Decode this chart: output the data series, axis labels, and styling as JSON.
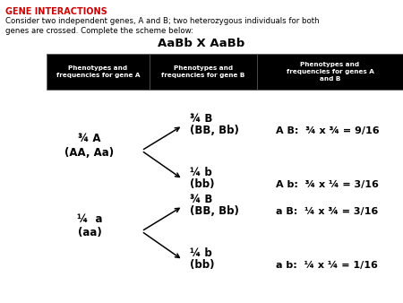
{
  "title_text": "GENE INTERACTIONS",
  "title_color": "#cc0000",
  "body_line1": "Consider two independent genes, A and B; two heterozygous individuals for both",
  "body_line2": "genes are crossed. Complete the scheme below:",
  "cross_text": "AaBb X AaBb",
  "table_headers": [
    "Phenotypes and\nfrequencies for gene A",
    "Phenotypes and\nfrequencies for gene B",
    "Phenotypes and\nfrequencies for genes A\nand B"
  ],
  "table_bg": "#000000",
  "table_text_color": "#ffffff",
  "left_top_line1": "¾ A",
  "left_top_line2": "(AA, Aa)",
  "left_bot_line1": "¼  a",
  "left_bot_line2": "(aa)",
  "rt_up_line1": "¾ B",
  "rt_up_line2": "(BB, Bb)",
  "rt_dn_line1": "¼ b",
  "rt_dn_line2": "(bb)",
  "rb_up_line1": "¾ B",
  "rb_up_line2": "(BB, Bb)",
  "rb_dn_line1": "¼ b",
  "rb_dn_line2": "(bb)",
  "res_tu": "A B:  ¾ x ¾ = 9/16",
  "res_td": "A b:  ¾ x ¼ = 3/16",
  "res_bu": "a B:  ¼ x ¾ = 3/16",
  "res_bd": "a b:  ¼ x ¼ = 1/16",
  "bg_color": "#ffffff"
}
